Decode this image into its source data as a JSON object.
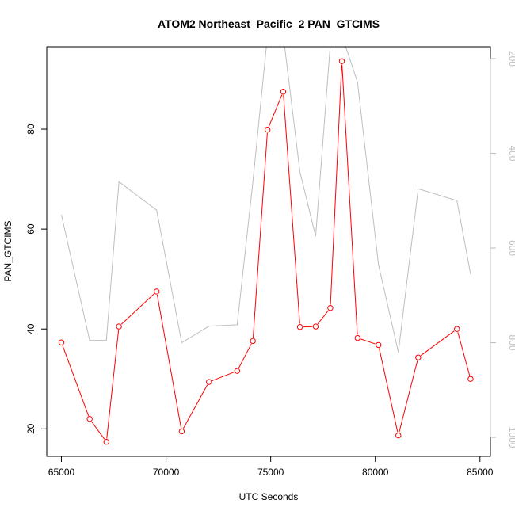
{
  "chart_data": {
    "type": "line",
    "title": "ATOM2 Northeast_Pacific_2 PAN_GTCIMS",
    "xlabel": "UTC Seconds",
    "ylabel": "PAN_GTCIMS",
    "xlim": [
      64300,
      85500
    ],
    "ylim": [
      14.5,
      96.5
    ],
    "xticks": [
      65000,
      70000,
      75000,
      80000,
      85000
    ],
    "yticks": [
      20,
      40,
      60,
      80
    ],
    "y2lim": [
      1040,
      175
    ],
    "y2ticks": [
      200,
      400,
      600,
      800,
      1000
    ],
    "grid": false,
    "series": [
      {
        "axis": "left",
        "color": "#ff0000",
        "markers": "open-circle",
        "x": [
          65000,
          66350,
          67150,
          67750,
          69550,
          70750,
          72050,
          73400,
          74150,
          74850,
          75600,
          76400,
          77150,
          77850,
          78400,
          79150,
          80150,
          81100,
          82050,
          83900,
          84550
        ],
        "values": [
          37.3,
          22.0,
          17.4,
          40.5,
          47.5,
          19.5,
          29.4,
          31.6,
          37.6,
          79.9,
          87.5,
          40.4,
          40.5,
          44.2,
          93.6,
          38.2,
          36.8,
          18.7,
          34.3,
          40.0,
          30.0
        ]
      },
      {
        "axis": "right",
        "color": "#bebebe",
        "markers": "none",
        "x": [
          65000,
          66350,
          67150,
          67750,
          69550,
          70750,
          72050,
          73400,
          74150,
          74850,
          75600,
          76400,
          77150,
          77850,
          78400,
          79150,
          80150,
          81100,
          82050,
          83900,
          84550
        ],
        "values": [
          530,
          795,
          795,
          460,
          520,
          800,
          765,
          762,
          460,
          150,
          150,
          440,
          575,
          170,
          150,
          250,
          635,
          820,
          475,
          500,
          655
        ]
      }
    ]
  }
}
